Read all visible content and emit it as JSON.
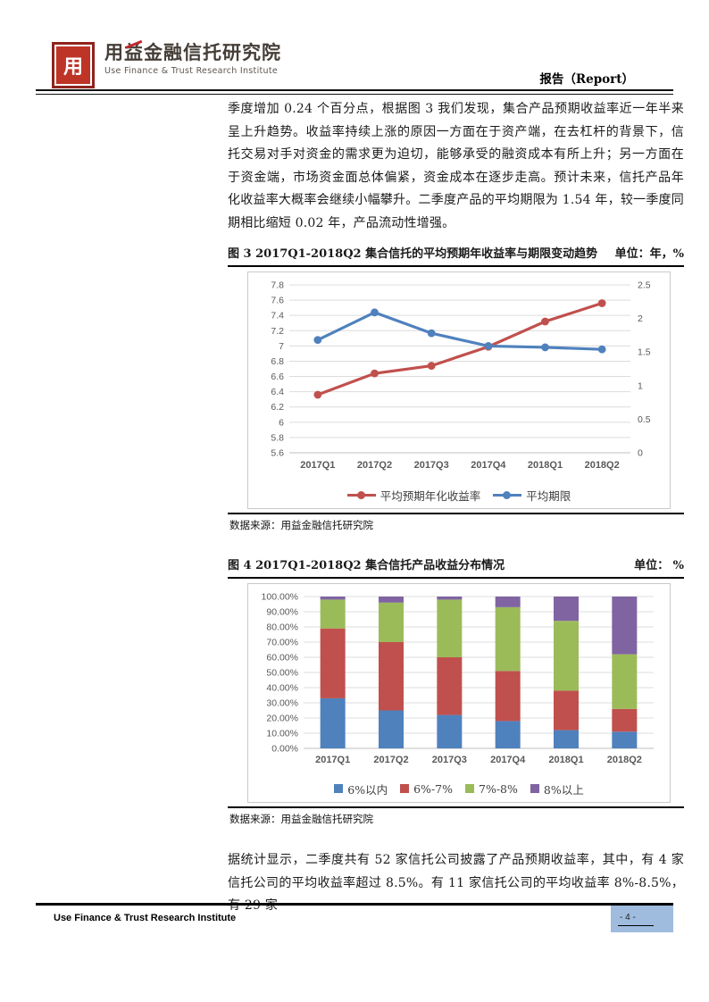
{
  "header": {
    "logo": {
      "seal_char": "用",
      "title": "用益金融信托研究院",
      "subtitle": "Use Finance & Trust Research Institute"
    },
    "report_label": "报告（Report）"
  },
  "paragraphs": [
    "季度增加 0.24 个百分点，根据图 3 我们发现，集合产品预期收益率近一年半来呈上升趋势。收益率持续上涨的原因一方面在于资产端，在去杠杆的背景下，信托交易对手对资金的需求更为迫切，能够承受的融资成本有所上升；另一方面在于资金端，市场资金面总体偏紧，资金成本在逐步走高。预计未来，信托产品年化收益率大概率会继续小幅攀升。二季度产品的平均期限为 1.54 年，较一季度同期相比缩短 0.02 年，产品流动性增强。",
    "据统计显示，二季度共有 52 家信托公司披露了产品预期收益率，其中，有 4 家信托公司的平均收益率超过 8.5%。有 11 家信托公司的平均收益率 8%-8.5%，有 29 家"
  ],
  "figure3": {
    "caption": "图 3 2017Q1-2018Q2 集合信托的平均预期年收益率与期限变动趋势",
    "unit": "单位：年，%",
    "source": "数据来源：用益金融信托研究院"
  },
  "figure4": {
    "caption": "图 4 2017Q1-2018Q2 集合信托产品收益分布情况",
    "unit": "单位： %",
    "source": "数据来源：用益金融信托研究院"
  },
  "footer": {
    "institute": "Use Finance & Trust Research Institute",
    "page_number": "- 4 -",
    "badge_color": "#9FBCDF"
  },
  "colors": {
    "logo_red": "#BE3426",
    "seal_border": "#8E241D",
    "accent_red": "#C1272D",
    "grid_line": "#DCDCDC",
    "axis_line": "#BFBFBF"
  },
  "chart_data": [
    {
      "type": "line",
      "title": "2017Q1-2018Q2 集合信托的平均预期年收益率与期限变动趋势",
      "categories": [
        "2017Q1",
        "2017Q2",
        "2017Q3",
        "2017Q4",
        "2018Q1",
        "2018Q2"
      ],
      "series": [
        {
          "name": "平均预期年化收益率",
          "axis": "left",
          "color": "#C0504D",
          "values": [
            6.36,
            6.64,
            6.74,
            6.99,
            7.32,
            7.56
          ]
        },
        {
          "name": "平均期限",
          "axis": "right",
          "color": "#4F81BD",
          "values": [
            1.68,
            2.09,
            1.78,
            1.59,
            1.57,
            1.54
          ]
        }
      ],
      "left_axis": {
        "min": 5.6,
        "max": 7.8,
        "step": 0.2
      },
      "right_axis": {
        "min": 0,
        "max": 2.5,
        "step": 0.5
      },
      "legend_position": "bottom",
      "grid": true
    },
    {
      "type": "bar",
      "stacked": true,
      "title": "2017Q1-2018Q2 集合信托产品收益分布情况",
      "categories": [
        "2017Q1",
        "2017Q2",
        "2017Q3",
        "2017Q4",
        "2018Q1",
        "2018Q2"
      ],
      "series": [
        {
          "name": "6%以内",
          "color": "#4F81BD",
          "values": [
            33,
            25,
            22,
            18,
            12,
            11
          ]
        },
        {
          "name": "6%-7%",
          "color": "#C0504D",
          "values": [
            46,
            45,
            38,
            33,
            26,
            15
          ]
        },
        {
          "name": "7%-8%",
          "color": "#9BBB59",
          "values": [
            19,
            26,
            38,
            42,
            46,
            36
          ]
        },
        {
          "name": "8%以上",
          "color": "#8064A2",
          "values": [
            2,
            4,
            2,
            7,
            16,
            38
          ]
        }
      ],
      "y_axis": {
        "min": 0,
        "max": 100,
        "step": 10,
        "format": "percent"
      },
      "legend_position": "bottom",
      "grid": true
    }
  ]
}
